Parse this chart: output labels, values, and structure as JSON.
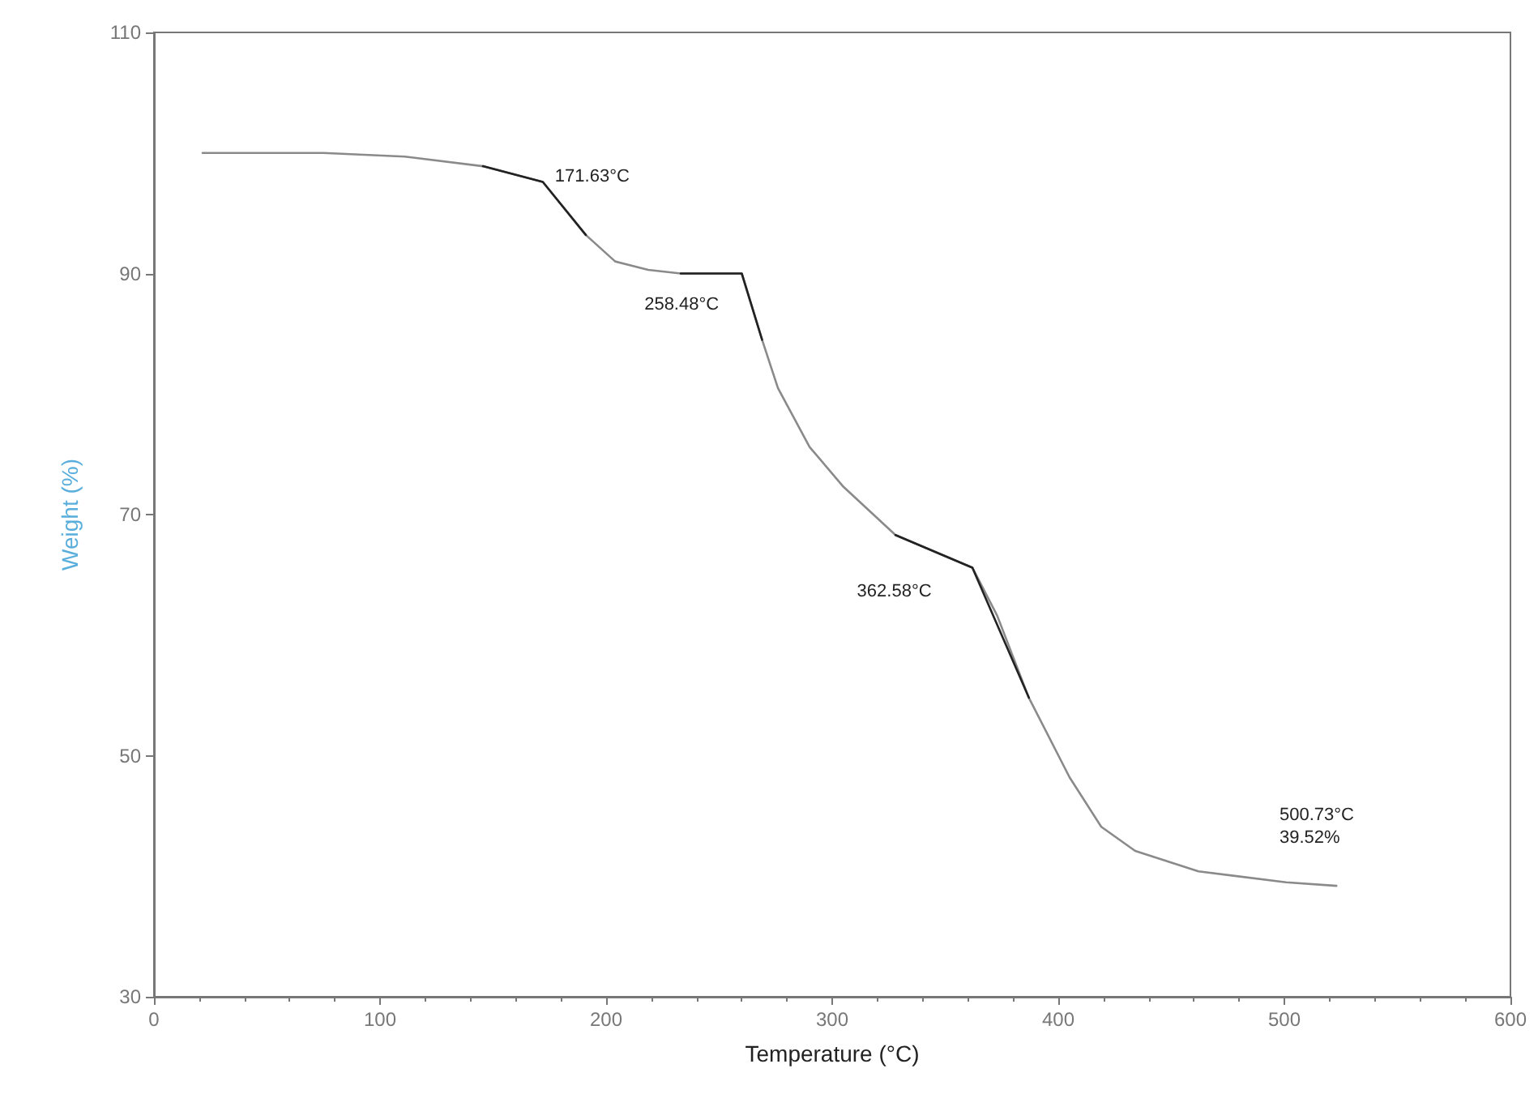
{
  "chart_data": {
    "type": "line",
    "xlabel": "Temperature (°C)",
    "ylabel": "Weight (%)",
    "xlim": [
      0,
      600
    ],
    "xticks": [
      0,
      100,
      200,
      300,
      400,
      500,
      600
    ],
    "ylim": [
      30,
      110
    ],
    "yticks": [
      30,
      50,
      70,
      90,
      110
    ],
    "grid": false,
    "marker": "none",
    "line_style": "solid",
    "series": [
      {
        "color": "#8a8a8a",
        "x": [
          21.5,
          75,
          111,
          145.5,
          172,
          191,
          204,
          218.6,
          233,
          260,
          269,
          276,
          290,
          305,
          328,
          362,
          373,
          387,
          405,
          419,
          434,
          462,
          500.7,
          523
        ],
        "values": [
          100,
          100,
          99.7,
          98.9,
          97.6,
          93.2,
          91,
          90.3,
          90,
          90,
          84.5,
          80.5,
          75.6,
          72.3,
          68.3,
          65.6,
          61.6,
          54.8,
          48.2,
          44.1,
          42.1,
          40.4,
          39.5,
          39.2
        ]
      },
      {
        "color": "#222222",
        "x": [
          145.5,
          172,
          191
        ],
        "values": [
          98.9,
          97.6,
          93.2
        ]
      },
      {
        "color": "#222222",
        "x": [
          233,
          260,
          269
        ],
        "values": [
          90,
          90,
          84.5
        ]
      },
      {
        "color": "#222222",
        "x": [
          328,
          362,
          387
        ],
        "values": [
          68.3,
          65.6,
          54.8
        ]
      }
    ],
    "annotations": [
      {
        "text": "171.63°C",
        "x": 171.63,
        "y": 97.6
      },
      {
        "text": "258.48°C",
        "x": 258.48,
        "y": 90
      },
      {
        "text": "362.58°C",
        "x": 362.58,
        "y": 65.6
      },
      {
        "text": "500.73°C\n39.52%",
        "x": 500.73,
        "y": 39.52
      }
    ]
  }
}
